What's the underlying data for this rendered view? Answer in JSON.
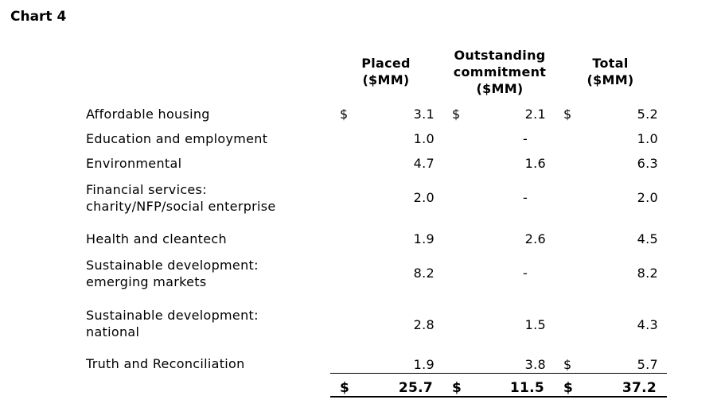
{
  "title": "Chart 4",
  "headers": {
    "placed": [
      "Placed",
      "($MM)"
    ],
    "outstanding": [
      "Outstanding",
      "commitment",
      "($MM)"
    ],
    "total": [
      "Total",
      "($MM)"
    ]
  },
  "currency": "$",
  "rows": [
    {
      "label": [
        "Affordable housing"
      ],
      "placed": "3.1",
      "outstanding": "2.1",
      "total": "5.2"
    },
    {
      "label": [
        "Education and employment"
      ],
      "placed": "1.0",
      "outstanding": "-",
      "total": "1.0"
    },
    {
      "label": [
        "Environmental"
      ],
      "placed": "4.7",
      "outstanding": "1.6",
      "total": "6.3"
    },
    {
      "label": [
        "Financial services:",
        "charity/NFP/social enterprise"
      ],
      "placed": "2.0",
      "outstanding": "-",
      "total": "2.0"
    },
    {
      "label": [
        "Health and cleantech"
      ],
      "placed": "1.9",
      "outstanding": "2.6",
      "total": "4.5"
    },
    {
      "label": [
        "Sustainable development:",
        "emerging markets"
      ],
      "placed": "8.2",
      "outstanding": "-",
      "total": "8.2"
    },
    {
      "label": [
        "Sustainable development:",
        "national"
      ],
      "placed": "2.8",
      "outstanding": "1.5",
      "total": "4.3"
    },
    {
      "label": [
        "Truth and Reconciliation"
      ],
      "placed": "1.9",
      "outstanding": "3.8",
      "total": "5.7"
    }
  ],
  "totals": {
    "placed": "25.7",
    "outstanding": "11.5",
    "total": "37.2"
  }
}
